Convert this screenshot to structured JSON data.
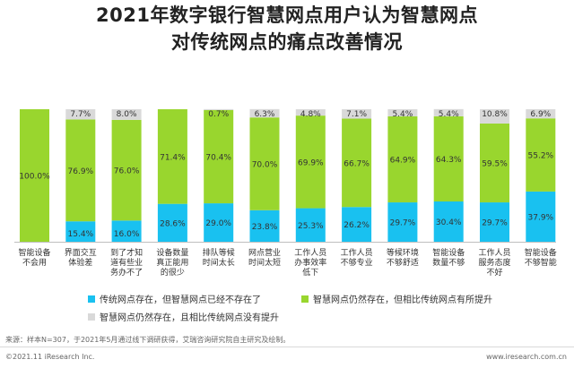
{
  "title_line1": "2021年数字银行智慧网点用户认为智慧网点",
  "title_line2": "对传统网点的痛点改善情况",
  "legend": {
    "s1": "传统网点存在，但智慧网点已经不存在了",
    "s2": "智慧网点仍然存在，但相比传统网点有所提升",
    "s3": "智慧网点仍然存在，且相比传统网点没有提升"
  },
  "colors": {
    "s1": "#19C1F0",
    "s2": "#99D62E",
    "s3": "#D9D9D9"
  },
  "footnote": "来源：样本N=307，于2021年5月通过线下调研获得，艾瑞咨询研究院自主研究及绘制。",
  "copyright": "©2021.11 iResearch Inc.",
  "website": "www.iresearch.com.cn",
  "chart_data": {
    "type": "bar",
    "stacked": true,
    "normalized_percent": true,
    "categories": [
      [
        "智能设备",
        "不会用"
      ],
      [
        "界面交互",
        "体验差"
      ],
      [
        "到了才知",
        "道有些业",
        "务办不了"
      ],
      [
        "设备数量",
        "真正能用",
        "的很少"
      ],
      [
        "排队等候",
        "时间太长"
      ],
      [
        "网点营业",
        "时间太短"
      ],
      [
        "工作人员",
        "办事效率",
        "低下"
      ],
      [
        "工作人员",
        "不够专业"
      ],
      [
        "等候环境",
        "不够舒适"
      ],
      [
        "智能设备",
        "数量不够"
      ],
      [
        "工作人员",
        "服务态度",
        "不好"
      ],
      [
        "智能设备",
        "不够智能"
      ]
    ],
    "series": [
      {
        "name": "传统网点存在，但智慧网点已经不存在了",
        "values": [
          null,
          15.4,
          16.0,
          28.6,
          29.0,
          23.8,
          25.3,
          26.2,
          29.7,
          30.4,
          29.7,
          37.9
        ],
        "labels": [
          "",
          "15.4%",
          "16.0%",
          "28.6%",
          "29.0%",
          "23.8%",
          "25.3%",
          "26.2%",
          "29.7%",
          "30.4%",
          "29.7%",
          "37.9%"
        ]
      },
      {
        "name": "智慧网点仍然存在，但相比传统网点有所提升",
        "values": [
          100.0,
          76.9,
          76.0,
          71.4,
          70.4,
          70.0,
          69.9,
          66.7,
          64.9,
          64.3,
          59.5,
          55.2
        ],
        "labels": [
          "100.0%",
          "76.9%",
          "76.0%",
          "71.4%",
          "70.4%",
          "70.0%",
          "69.9%",
          "66.7%",
          "64.9%",
          "64.3%",
          "59.5%",
          "55.2%"
        ]
      },
      {
        "name": "智慧网点仍然存在，且相比传统网点没有提升",
        "values": [
          null,
          7.7,
          8.0,
          null,
          0.7,
          6.3,
          4.8,
          7.1,
          5.4,
          5.4,
          10.8,
          6.9
        ],
        "labels": [
          "",
          "7.7%",
          "8.0%",
          "",
          "0.7%",
          "6.3%",
          "4.8%",
          "7.1%",
          "5.4%",
          "5.4%",
          "10.8%",
          "6.9%"
        ]
      }
    ],
    "ylim": [
      0,
      100
    ],
    "grid": false,
    "legend_position": "bottom"
  }
}
